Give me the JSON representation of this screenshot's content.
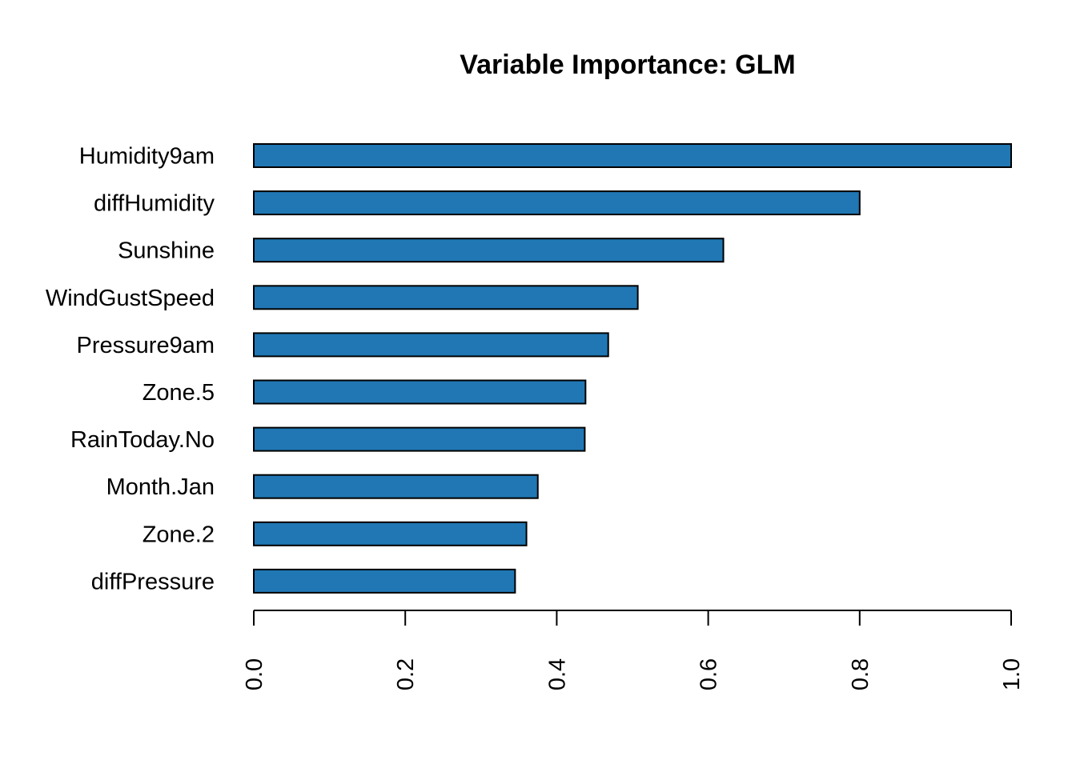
{
  "chart_data": {
    "type": "bar",
    "orientation": "horizontal",
    "title": "Variable Importance: GLM",
    "xlabel": "",
    "ylabel": "",
    "categories": [
      "Humidity9am",
      "diffHumidity",
      "Sunshine",
      "WindGustSpeed",
      "Pressure9am",
      "Zone.5",
      "RainToday.No",
      "Month.Jan",
      "Zone.2",
      "diffPressure"
    ],
    "values": [
      1.0,
      0.8,
      0.62,
      0.507,
      0.468,
      0.438,
      0.437,
      0.375,
      0.36,
      0.345
    ],
    "xlim": [
      0.0,
      1.0
    ],
    "xticks": [
      0.0,
      0.2,
      0.4,
      0.6,
      0.8,
      1.0
    ],
    "xtick_labels": [
      "0.0",
      "0.2",
      "0.4",
      "0.6",
      "0.8",
      "1.0"
    ],
    "tick_label_rotation": "vertical",
    "grid": false,
    "legend": "none",
    "bar_color": "#2077B4",
    "bar_border_color": "#000000"
  }
}
